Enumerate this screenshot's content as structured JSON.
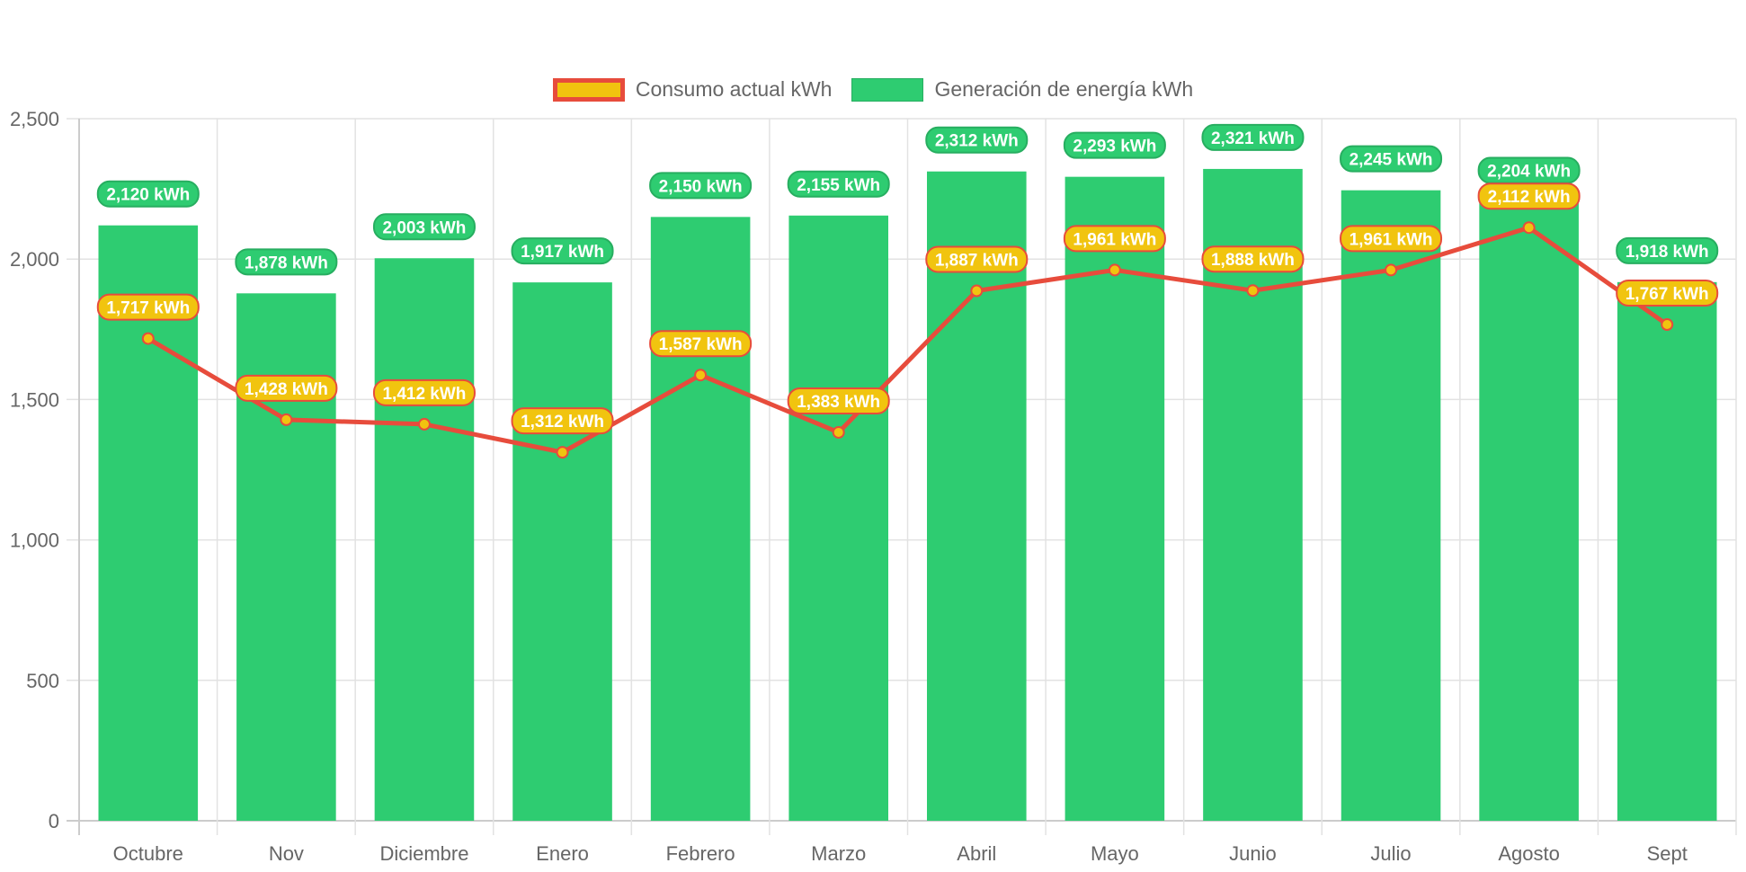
{
  "chart_data": {
    "type": "bar",
    "title": "",
    "xlabel": "",
    "ylabel": "",
    "ylim": [
      0,
      2500
    ],
    "yticks": [
      0,
      500,
      1000,
      1500,
      2000,
      2500
    ],
    "ytick_labels": [
      "0",
      "500",
      "1,000",
      "1,500",
      "2,000",
      "2,500"
    ],
    "grid": true,
    "legend_position": "top-center",
    "categories": [
      "Octubre",
      "Nov",
      "Diciembre",
      "Enero",
      "Febrero",
      "Marzo",
      "Abril",
      "Mayo",
      "Junio",
      "Julio",
      "Agosto",
      "Sept"
    ],
    "series": [
      {
        "name": "Consumo actual kWh",
        "type": "line",
        "color": "#e74c3c",
        "fill": "#f1c40f",
        "values": [
          1717,
          1428,
          1412,
          1312,
          1587,
          1383,
          1887,
          1961,
          1888,
          1961,
          2112,
          1767
        ],
        "labels": [
          "1,717 kWh",
          "1,428 kWh",
          "1,412 kWh",
          "1,312 kWh",
          "1,587 kWh",
          "1,383 kWh",
          "1,887 kWh",
          "1,961 kWh",
          "1,888 kWh",
          "1,961 kWh",
          "2,112 kWh",
          "1,767 kWh"
        ]
      },
      {
        "name": "Generación de energía kWh",
        "type": "bar",
        "color": "#2ecc71",
        "values": [
          2120,
          1878,
          2003,
          1917,
          2150,
          2155,
          2312,
          2293,
          2321,
          2245,
          2204,
          1918
        ],
        "labels": [
          "2,120 kWh",
          "1,878 kWh",
          "2,003 kWh",
          "1,917 kWh",
          "2,150 kWh",
          "2,155 kWh",
          "2,312 kWh",
          "2,293 kWh",
          "2,321 kWh",
          "2,245 kWh",
          "2,204 kWh",
          "1,918 kWh"
        ]
      }
    ]
  },
  "legend": {
    "items": [
      {
        "label": "Consumo actual kWh",
        "icon": "legend-swatch-consumo"
      },
      {
        "label": "Generación de energía kWh",
        "icon": "legend-swatch-generacion"
      }
    ]
  }
}
